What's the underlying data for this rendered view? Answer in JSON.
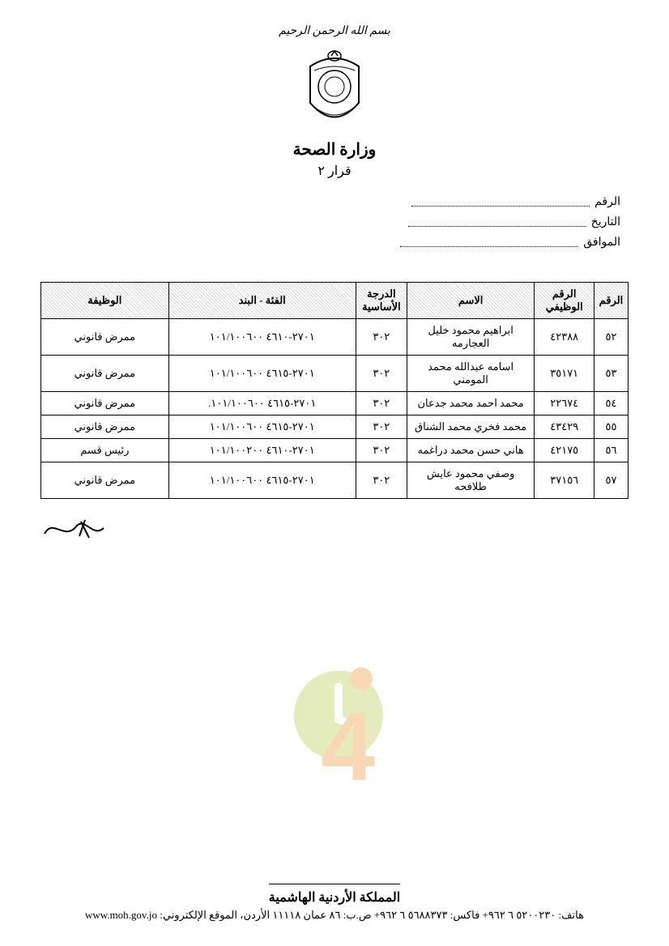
{
  "header": {
    "basmala": "بسم الله الرحمن الرحيم",
    "ministry": "وزارة الصحة",
    "decree": "قرار ٢"
  },
  "meta": {
    "number_label": "الرقم",
    "date_label": "التاريخ",
    "corresponding_label": "الموافق"
  },
  "table": {
    "columns": [
      "الرقم",
      "الرقم الوظيفي",
      "الاسم",
      "الدرجة الأساسية",
      "الفئة - البند",
      "الوظيفة"
    ],
    "rows": [
      [
        "٥٢",
        "٤٢٣٨٨",
        "ابراهيم محمود خليل العجارمه",
        "٣٠٢",
        "٢٧٠١-٤٦١٠ ١٠١/١٠٠٦٠٠",
        "ممرض قانوني"
      ],
      [
        "٥٣",
        "٣٥١٧١",
        "اسامه عبدالله محمد المومني",
        "٣٠٢",
        "٢٧٠١-٤٦١٥ ١٠١/١٠٠٦٠٠",
        "ممرض قانوني"
      ],
      [
        "٥٤",
        "٢٢٦٧٤",
        "محمد احمد محمد جدعان",
        "٣٠٢",
        "٢٧٠١-٤٦١٥ ١٠١/١٠٠٦٠٠.",
        "ممرض قانوني"
      ],
      [
        "٥٥",
        "٤٣٤٢٩",
        "محمد فخري محمد الشناق",
        "٣٠٢",
        "٢٧٠١-٤٦١٥ ١٠١/١٠٠٦٠٠",
        "ممرض قانوني"
      ],
      [
        "٥٦",
        "٤٢١٧٥",
        "هاني حسن محمد دراغمه",
        "٣٠٢",
        "٢٧٠١-٤٦١٠ ١٠١/١٠٠٢٠٠",
        "رئيس قسم"
      ],
      [
        "٥٧",
        "٣٧١٥٦",
        "وصفي محمود عايش طلافحه",
        "٣٠٢",
        "٢٧٠١-٤٦١٥ ١٠١/١٠٠٦٠٠",
        "ممرض قانوني"
      ]
    ]
  },
  "signature_glyph": "✦﻿ـــ",
  "watermark": {
    "text_j": "J",
    "text_24": "24",
    "colors": {
      "grey": "#9e9e9e",
      "green": "#b5c843",
      "orange": "#e98f2b"
    }
  },
  "footer": {
    "line1": "المملكة الأردنية الهاشمية",
    "line2": "هاتف: ٥٢٠٠٢٣٠ ٦ ٩٦٢+ فاكس: ٥٦٨٨٣٧٣ ٦ ٩٦٢+ ص.ب: ٨٦ عمان ١١١١٨ الأردن، الموقع الإلكتروني: www.moh.gov.jo"
  }
}
